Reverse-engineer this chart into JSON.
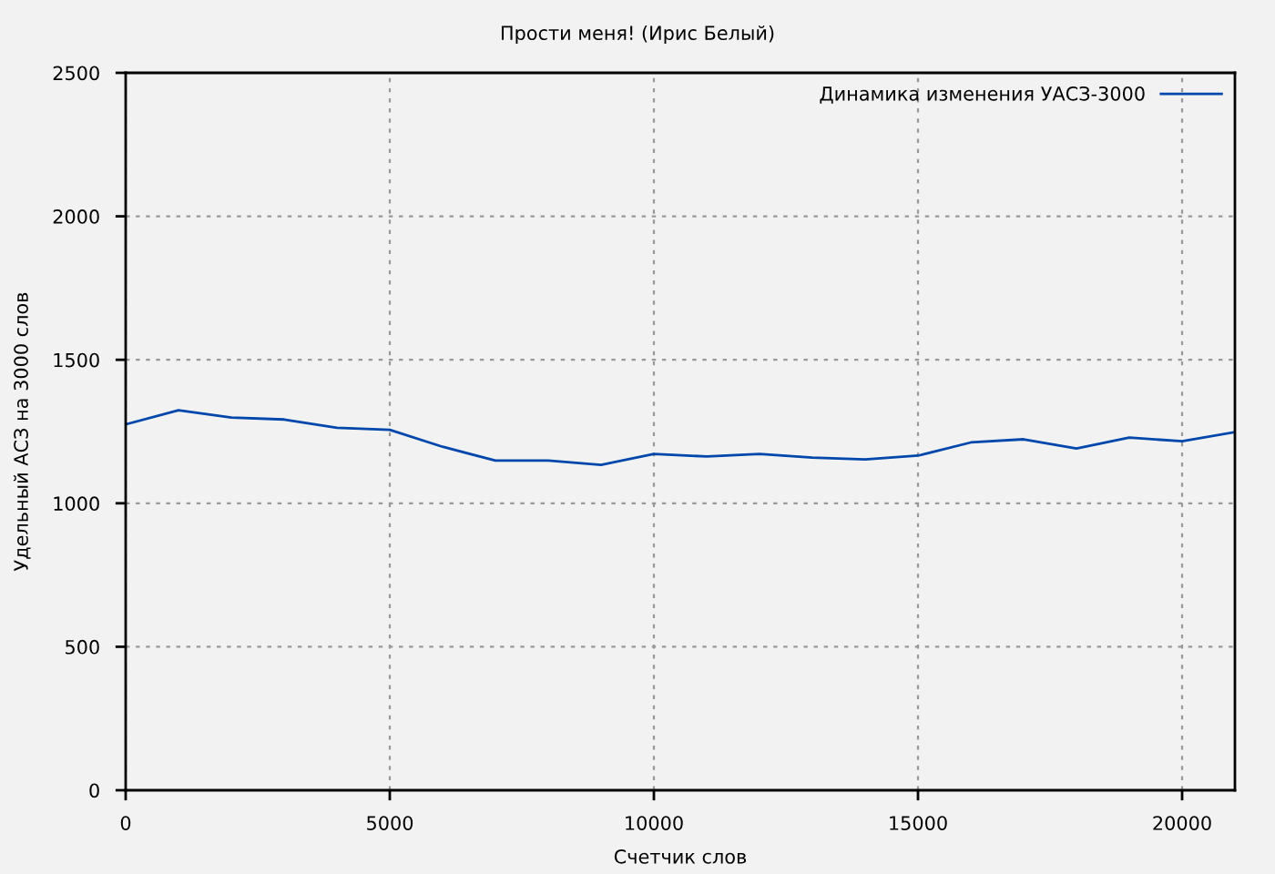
{
  "chart_data": {
    "type": "line",
    "title": "Прости меня! (Ирис Белый)",
    "xlabel": "Счетчик слов",
    "ylabel": "Удельный АСЗ на 3000 слов",
    "x": [
      0,
      1000,
      2000,
      3000,
      4000,
      5000,
      6000,
      7000,
      8000,
      9000,
      10000,
      11000,
      12000,
      13000,
      14000,
      15000,
      16000,
      17000,
      18000,
      19000,
      20000,
      21000
    ],
    "series": [
      {
        "name": "Динамика изменения УАСЗ-3000",
        "color": "#0047ab",
        "values": [
          1275,
          1324,
          1299,
          1292,
          1263,
          1256,
          1197,
          1149,
          1149,
          1134,
          1172,
          1163,
          1172,
          1159,
          1153,
          1166,
          1212,
          1223,
          1191,
          1229,
          1216,
          1248
        ]
      }
    ],
    "xlim": [
      0,
      21000
    ],
    "ylim": [
      0,
      2500
    ],
    "xticks": [
      0,
      5000,
      10000,
      15000,
      20000
    ],
    "yticks": [
      0,
      500,
      1000,
      1500,
      2000,
      2500
    ],
    "grid": true,
    "legend": "top right"
  }
}
